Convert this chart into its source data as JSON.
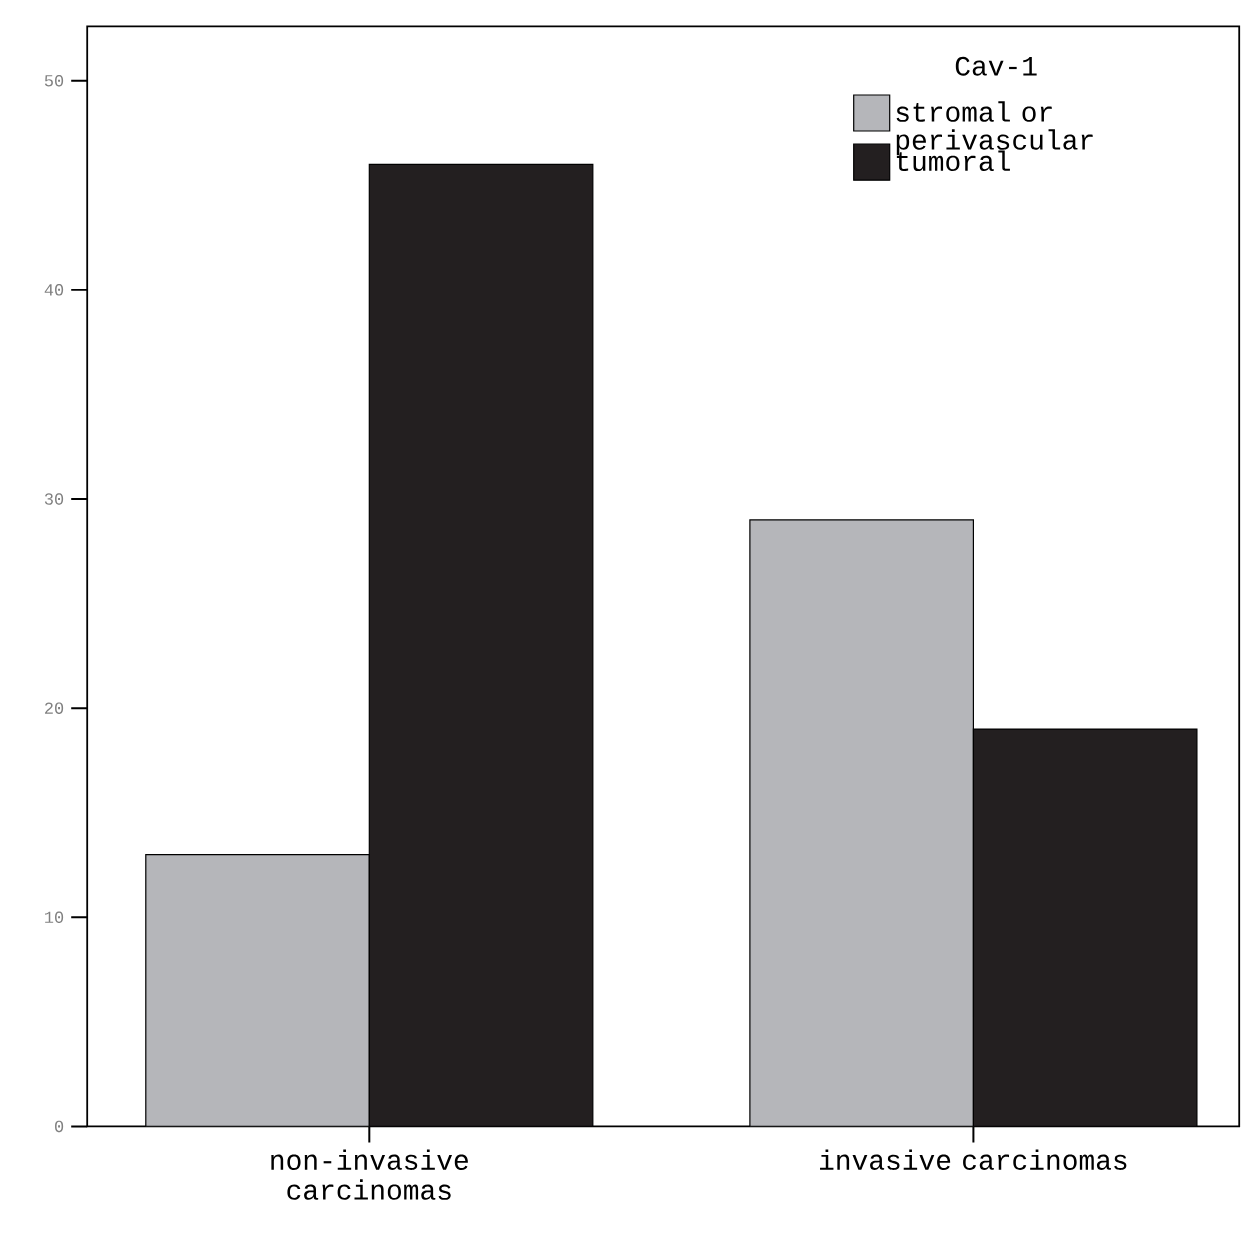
{
  "chart_data": {
    "type": "bar",
    "legend_title": "Cav-1",
    "categories": [
      "non-invasive carcinomas",
      "invasive carcinomas"
    ],
    "series": [
      {
        "name": "stromal or perivascular",
        "color": "#b5b6ba",
        "values": [
          13,
          29
        ]
      },
      {
        "name": "tumoral",
        "color": "#231f20",
        "values": [
          46,
          19
        ]
      }
    ],
    "ylim": [
      0,
      52.6
    ],
    "yticks": [
      0,
      10,
      20,
      30,
      40,
      50
    ],
    "grid": false,
    "legend": "top right"
  }
}
